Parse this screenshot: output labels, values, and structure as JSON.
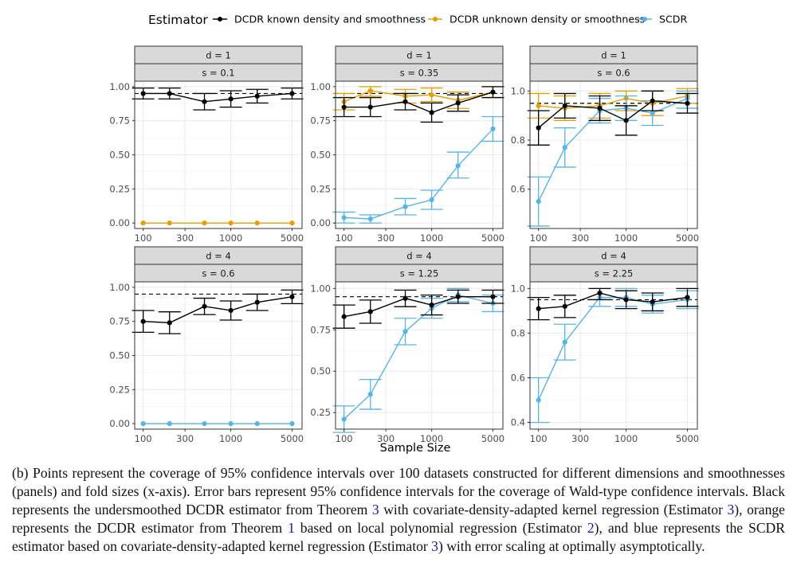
{
  "legend": {
    "title": "Estimator",
    "entries": [
      {
        "key": "known",
        "label": "DCDR known density and smoothness"
      },
      {
        "key": "unknown",
        "label": "DCDR unknown density or smoothness"
      },
      {
        "key": "scdr",
        "label": "SCDR"
      }
    ]
  },
  "colors": {
    "known": "#000000",
    "unknown": "#E69F00",
    "scdr": "#56B4E9",
    "strip_bg": "#d9d9d9",
    "grid": "#ebebeb",
    "reference_line": "#000000"
  },
  "chart_data": {
    "type": "line",
    "title": "",
    "xlabel": "Sample Size",
    "ylabel": "",
    "x_scale": "log",
    "xlim": [
      80,
      6500
    ],
    "x_tick_values": [
      100,
      300,
      1000,
      5000
    ],
    "x_tick_labels": [
      "100",
      "300",
      "1000",
      "5000"
    ],
    "reference_y": 0.95,
    "legend_position": "top",
    "panels": [
      {
        "strip_d": "d = 1",
        "strip_s": "s = 0.1",
        "ylim": [
          -0.04,
          1.04
        ],
        "y_ticks": [
          0,
          0.25,
          0.5,
          0.75,
          1
        ],
        "y_tick_labels": [
          "0.00",
          "0.25",
          "0.50",
          "0.75",
          "1.00"
        ],
        "series": [
          {
            "key": "unknown",
            "name": "DCDR unknown density or smoothness",
            "x": [
              100,
              200,
              500,
              1000,
              2000,
              5000
            ],
            "y": [
              0,
              0,
              0,
              0,
              0,
              0
            ],
            "lo": [
              0,
              0,
              0,
              0,
              0,
              0
            ],
            "hi": [
              0,
              0,
              0,
              0,
              0,
              0
            ],
            "error_bars": false
          },
          {
            "key": "known",
            "name": "DCDR known density and smoothness",
            "x": [
              100,
              200,
              500,
              1000,
              2000,
              5000
            ],
            "y": [
              0.95,
              0.95,
              0.89,
              0.91,
              0.93,
              0.95
            ],
            "lo": [
              0.91,
              0.91,
              0.83,
              0.85,
              0.88,
              0.91
            ],
            "hi": [
              0.99,
              0.99,
              0.95,
              0.97,
              0.98,
              0.99
            ],
            "error_bars": true
          }
        ]
      },
      {
        "strip_d": "d = 1",
        "strip_s": "s = 0.35",
        "ylim": [
          -0.04,
          1.04
        ],
        "y_ticks": [
          0,
          0.25,
          0.5,
          0.75,
          1
        ],
        "y_tick_labels": [
          "0.00",
          "0.25",
          "0.50",
          "0.75",
          "1.00"
        ],
        "series": [
          {
            "key": "scdr",
            "name": "SCDR",
            "x": [
              100,
              200,
              500,
              1000,
              2000,
              5000
            ],
            "y": [
              0.04,
              0.03,
              0.12,
              0.17,
              0.42,
              0.69
            ],
            "lo": [
              0.0,
              0.0,
              0.06,
              0.1,
              0.33,
              0.6
            ],
            "hi": [
              0.08,
              0.06,
              0.18,
              0.24,
              0.52,
              0.78
            ],
            "error_bars": true
          },
          {
            "key": "unknown",
            "name": "DCDR unknown density or smoothness",
            "x": [
              100,
              200,
              500,
              1000,
              2000,
              5000
            ],
            "y": [
              0.89,
              0.97,
              0.93,
              0.94,
              0.9,
              0.96
            ],
            "lo": [
              0.83,
              0.93,
              0.88,
              0.89,
              0.84,
              0.92
            ],
            "hi": [
              0.95,
              1.0,
              0.98,
              0.99,
              0.96,
              1.0
            ],
            "error_bars": true
          },
          {
            "key": "known",
            "name": "DCDR known density and smoothness",
            "x": [
              100,
              200,
              500,
              1000,
              2000,
              5000
            ],
            "y": [
              0.85,
              0.85,
              0.89,
              0.81,
              0.88,
              0.96
            ],
            "lo": [
              0.78,
              0.78,
              0.83,
              0.74,
              0.82,
              0.92
            ],
            "hi": [
              0.92,
              0.92,
              0.95,
              0.88,
              0.94,
              1.0
            ],
            "error_bars": true
          }
        ]
      },
      {
        "strip_d": "d = 1",
        "strip_s": "s = 0.6",
        "ylim": [
          0.44,
          1.04
        ],
        "y_ticks": [
          0.6,
          0.8,
          1
        ],
        "y_tick_labels": [
          "0.6",
          "0.8",
          "1.0"
        ],
        "series": [
          {
            "key": "scdr",
            "name": "SCDR",
            "x": [
              100,
              200,
              500,
              1000,
              2000,
              5000
            ],
            "y": [
              0.55,
              0.77,
              0.92,
              0.93,
              0.91,
              0.97
            ],
            "lo": [
              0.45,
              0.69,
              0.87,
              0.88,
              0.86,
              0.93
            ],
            "hi": [
              0.65,
              0.85,
              0.97,
              0.98,
              0.96,
              1.0
            ],
            "error_bars": true
          },
          {
            "key": "unknown",
            "name": "DCDR unknown density or smoothness",
            "x": [
              100,
              200,
              500,
              1000,
              2000,
              5000
            ],
            "y": [
              0.94,
              0.93,
              0.94,
              0.97,
              0.95,
              0.98
            ],
            "lo": [
              0.89,
              0.88,
              0.89,
              0.92,
              0.9,
              0.95
            ],
            "hi": [
              0.99,
              0.98,
              0.99,
              1.0,
              1.0,
              1.01
            ],
            "error_bars": true
          },
          {
            "key": "known",
            "name": "DCDR known density and smoothness",
            "x": [
              100,
              200,
              500,
              1000,
              2000,
              5000
            ],
            "y": [
              0.85,
              0.94,
              0.93,
              0.88,
              0.96,
              0.95
            ],
            "lo": [
              0.78,
              0.89,
              0.88,
              0.82,
              0.92,
              0.91
            ],
            "hi": [
              0.92,
              0.99,
              0.98,
              0.94,
              1.0,
              0.99
            ],
            "error_bars": true
          }
        ]
      },
      {
        "strip_d": "d = 4",
        "strip_s": "s = 0.6",
        "ylim": [
          -0.04,
          1.04
        ],
        "y_ticks": [
          0,
          0.25,
          0.5,
          0.75,
          1
        ],
        "y_tick_labels": [
          "0.00",
          "0.25",
          "0.50",
          "0.75",
          "1.00"
        ],
        "series": [
          {
            "key": "scdr",
            "name": "SCDR",
            "x": [
              100,
              200,
              500,
              1000,
              2000,
              5000
            ],
            "y": [
              0,
              0,
              0,
              0,
              0,
              0
            ],
            "lo": [
              0,
              0,
              0,
              0,
              0,
              0
            ],
            "hi": [
              0,
              0,
              0,
              0,
              0,
              0
            ],
            "error_bars": false
          },
          {
            "key": "known",
            "name": "DCDR known density and smoothness",
            "x": [
              100,
              200,
              500,
              1000,
              2000,
              5000
            ],
            "y": [
              0.75,
              0.74,
              0.86,
              0.83,
              0.89,
              0.93
            ],
            "lo": [
              0.67,
              0.66,
              0.8,
              0.76,
              0.83,
              0.88
            ],
            "hi": [
              0.83,
              0.82,
              0.92,
              0.9,
              0.95,
              0.98
            ],
            "error_bars": true
          }
        ]
      },
      {
        "strip_d": "d = 4",
        "strip_s": "s = 1.25",
        "ylim": [
          0.15,
          1.04
        ],
        "y_ticks": [
          0.25,
          0.5,
          0.75,
          1
        ],
        "y_tick_labels": [
          "0.25",
          "0.50",
          "0.75",
          "1.00"
        ],
        "series": [
          {
            "key": "scdr",
            "name": "SCDR",
            "x": [
              100,
              200,
              500,
              1000,
              2000,
              5000
            ],
            "y": [
              0.21,
              0.36,
              0.74,
              0.88,
              0.96,
              0.91
            ],
            "lo": [
              0.13,
              0.27,
              0.66,
              0.82,
              0.92,
              0.86
            ],
            "hi": [
              0.29,
              0.45,
              0.82,
              0.94,
              1.0,
              0.96
            ],
            "error_bars": true
          },
          {
            "key": "known",
            "name": "DCDR known density and smoothness",
            "x": [
              100,
              200,
              500,
              1000,
              2000,
              5000
            ],
            "y": [
              0.83,
              0.86,
              0.94,
              0.9,
              0.95,
              0.95
            ],
            "lo": [
              0.76,
              0.79,
              0.89,
              0.84,
              0.91,
              0.91
            ],
            "hi": [
              0.9,
              0.93,
              0.99,
              0.96,
              0.99,
              0.99
            ],
            "error_bars": true
          }
        ]
      },
      {
        "strip_d": "d = 4",
        "strip_s": "s = 2.25",
        "ylim": [
          0.37,
          1.03
        ],
        "y_ticks": [
          0.4,
          0.6,
          0.8,
          1
        ],
        "y_tick_labels": [
          "0.4",
          "0.6",
          "0.8",
          "1.0"
        ],
        "series": [
          {
            "key": "scdr",
            "name": "SCDR",
            "x": [
              100,
              200,
              500,
              1000,
              2000,
              5000
            ],
            "y": [
              0.5,
              0.76,
              0.96,
              0.96,
              0.93,
              0.95
            ],
            "lo": [
              0.4,
              0.68,
              0.92,
              0.92,
              0.89,
              0.91
            ],
            "hi": [
              0.6,
              0.84,
              1.0,
              1.0,
              0.97,
              0.99
            ],
            "error_bars": true
          },
          {
            "key": "known",
            "name": "DCDR known density and smoothness",
            "x": [
              100,
              200,
              500,
              1000,
              2000,
              5000
            ],
            "y": [
              0.91,
              0.92,
              0.98,
              0.95,
              0.94,
              0.96
            ],
            "lo": [
              0.86,
              0.87,
              0.95,
              0.91,
              0.9,
              0.92
            ],
            "hi": [
              0.96,
              0.97,
              1.0,
              0.99,
              0.98,
              1.0
            ],
            "error_bars": true
          }
        ]
      }
    ]
  },
  "caption": {
    "t1": "(b) Points represent the coverage of 95% confidence intervals over 100 datasets constructed for different dimensions and smoothnesses (panels) and fold sizes (x-axis).  Error bars represent 95% confidence intervals for the coverage of Wald-type confidence intervals.  Black represents the undersmoothed DCDR estimator from Theorem ",
    "r1": "3",
    "t2": " with covariate-density-adapted kernel regression (Estimator ",
    "r2": "3",
    "t3": "), orange represents the DCDR estimator from Theorem ",
    "r3": "1",
    "t4": " based on local polynomial regression (Estimator ",
    "r4": "2",
    "t5": "), and blue represents the SCDR estimator based on covariate-density-adapted kernel regression (Estimator ",
    "r5": "3",
    "t6": ") with error scaling at optimally asymptotically."
  }
}
